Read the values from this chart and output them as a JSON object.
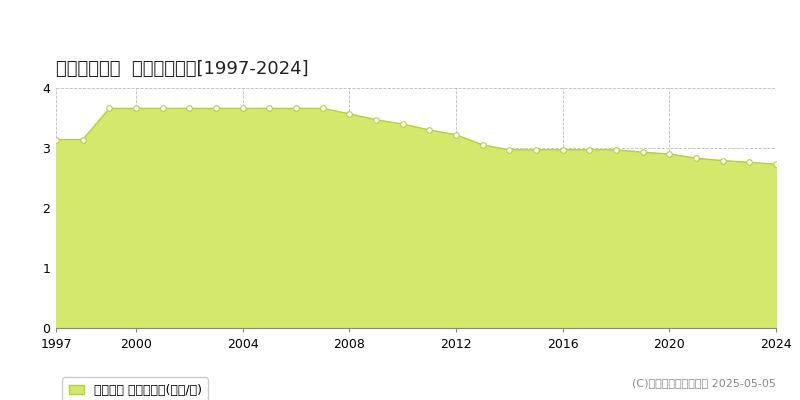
{
  "title": "大島町差木地  基準地価推移[1997-2024]",
  "years": [
    1997,
    1998,
    1999,
    2000,
    2001,
    2002,
    2003,
    2004,
    2005,
    2006,
    2007,
    2008,
    2009,
    2010,
    2011,
    2012,
    2013,
    2014,
    2015,
    2016,
    2017,
    2018,
    2019,
    2020,
    2021,
    2022,
    2023,
    2024
  ],
  "values": [
    3.14,
    3.14,
    3.66,
    3.66,
    3.66,
    3.66,
    3.66,
    3.66,
    3.66,
    3.66,
    3.66,
    3.57,
    3.47,
    3.4,
    3.3,
    3.22,
    3.05,
    2.97,
    2.97,
    2.97,
    2.97,
    2.97,
    2.93,
    2.9,
    2.83,
    2.79,
    2.76,
    2.73
  ],
  "fill_color": "#d4e96b",
  "line_color": "#b8cc44",
  "marker_facecolor": "#ffffff",
  "marker_edgecolor": "#b8cc44",
  "background_color": "#ffffff",
  "plot_bg_color": "#ffffff",
  "grid_color": "#bbbbbb",
  "ylim": [
    0,
    4
  ],
  "yticks": [
    0,
    1,
    2,
    3,
    4
  ],
  "xticks": [
    1997,
    2000,
    2004,
    2008,
    2012,
    2016,
    2020,
    2024
  ],
  "xlim": [
    1997,
    2024
  ],
  "legend_label": "基準地価 平均坪単価(万円/坪)",
  "legend_square_color": "#d4e96b",
  "legend_square_edge": "#b8cc44",
  "copyright_text": "(C)土地価格ドットコム 2025-05-05",
  "title_fontsize": 13,
  "tick_fontsize": 9,
  "legend_fontsize": 9,
  "copyright_fontsize": 8
}
